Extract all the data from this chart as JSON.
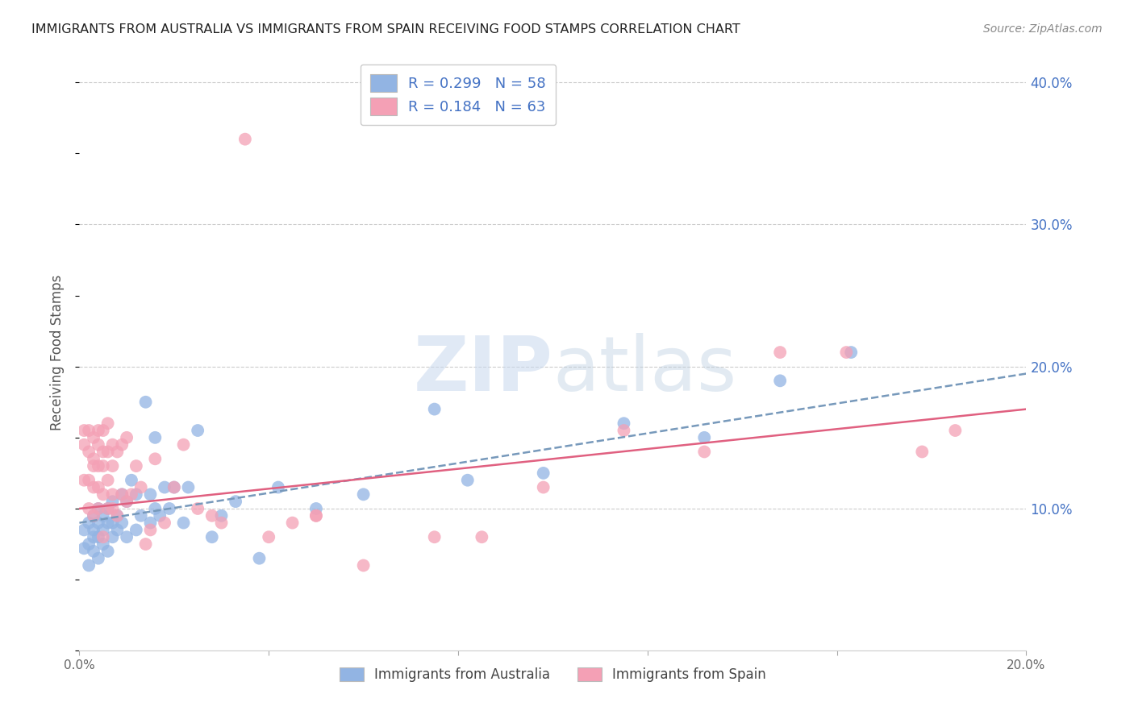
{
  "title": "IMMIGRANTS FROM AUSTRALIA VS IMMIGRANTS FROM SPAIN RECEIVING FOOD STAMPS CORRELATION CHART",
  "source": "Source: ZipAtlas.com",
  "ylabel": "Receiving Food Stamps",
  "xlabel": "",
  "xlim": [
    0.0,
    0.2
  ],
  "ylim": [
    0.0,
    0.42
  ],
  "yticks": [
    0.1,
    0.2,
    0.3,
    0.4
  ],
  "ytick_labels": [
    "10.0%",
    "20.0%",
    "30.0%",
    "40.0%"
  ],
  "xticks": [
    0.0,
    0.04,
    0.08,
    0.12,
    0.16,
    0.2
  ],
  "xtick_labels": [
    "0.0%",
    "",
    "",
    "",
    "",
    "20.0%"
  ],
  "australia_color": "#92b4e3",
  "spain_color": "#f4a0b5",
  "australia_line_color": "#7799bb",
  "spain_line_color": "#e06080",
  "australia_R": 0.299,
  "australia_N": 58,
  "spain_R": 0.184,
  "spain_N": 63,
  "watermark_zip": "ZIP",
  "watermark_atlas": "atlas",
  "axis_label_color": "#4472c4",
  "tick_label_color": "#4472c4",
  "aus_trend_x0": 0.0,
  "aus_trend_y0": 0.09,
  "aus_trend_x1": 0.2,
  "aus_trend_y1": 0.195,
  "esp_trend_x0": 0.0,
  "esp_trend_y0": 0.1,
  "esp_trend_x1": 0.2,
  "esp_trend_y1": 0.17,
  "australia_x": [
    0.001,
    0.001,
    0.002,
    0.002,
    0.002,
    0.003,
    0.003,
    0.003,
    0.003,
    0.004,
    0.004,
    0.004,
    0.004,
    0.005,
    0.005,
    0.005,
    0.006,
    0.006,
    0.006,
    0.007,
    0.007,
    0.007,
    0.008,
    0.008,
    0.009,
    0.009,
    0.01,
    0.01,
    0.011,
    0.012,
    0.012,
    0.013,
    0.014,
    0.015,
    0.015,
    0.016,
    0.016,
    0.017,
    0.018,
    0.019,
    0.02,
    0.022,
    0.023,
    0.025,
    0.028,
    0.03,
    0.033,
    0.038,
    0.042,
    0.05,
    0.06,
    0.075,
    0.082,
    0.098,
    0.115,
    0.132,
    0.148,
    0.163
  ],
  "australia_y": [
    0.085,
    0.072,
    0.09,
    0.075,
    0.06,
    0.08,
    0.095,
    0.07,
    0.085,
    0.065,
    0.08,
    0.1,
    0.09,
    0.075,
    0.085,
    0.095,
    0.07,
    0.09,
    0.1,
    0.08,
    0.09,
    0.105,
    0.085,
    0.095,
    0.09,
    0.11,
    0.08,
    0.105,
    0.12,
    0.085,
    0.11,
    0.095,
    0.175,
    0.09,
    0.11,
    0.1,
    0.15,
    0.095,
    0.115,
    0.1,
    0.115,
    0.09,
    0.115,
    0.155,
    0.08,
    0.095,
    0.105,
    0.065,
    0.115,
    0.1,
    0.11,
    0.17,
    0.12,
    0.125,
    0.16,
    0.15,
    0.19,
    0.21
  ],
  "spain_x": [
    0.001,
    0.001,
    0.001,
    0.002,
    0.002,
    0.002,
    0.002,
    0.003,
    0.003,
    0.003,
    0.003,
    0.003,
    0.004,
    0.004,
    0.004,
    0.004,
    0.004,
    0.005,
    0.005,
    0.005,
    0.005,
    0.005,
    0.006,
    0.006,
    0.006,
    0.006,
    0.007,
    0.007,
    0.007,
    0.007,
    0.008,
    0.008,
    0.009,
    0.009,
    0.01,
    0.01,
    0.011,
    0.012,
    0.013,
    0.014,
    0.015,
    0.016,
    0.018,
    0.02,
    0.022,
    0.025,
    0.028,
    0.03,
    0.035,
    0.04,
    0.045,
    0.05,
    0.06,
    0.05,
    0.075,
    0.085,
    0.098,
    0.115,
    0.132,
    0.148,
    0.162,
    0.178,
    0.185
  ],
  "spain_y": [
    0.145,
    0.12,
    0.155,
    0.1,
    0.14,
    0.12,
    0.155,
    0.095,
    0.135,
    0.115,
    0.15,
    0.13,
    0.1,
    0.145,
    0.115,
    0.155,
    0.13,
    0.08,
    0.13,
    0.11,
    0.14,
    0.155,
    0.1,
    0.14,
    0.12,
    0.16,
    0.1,
    0.13,
    0.11,
    0.145,
    0.095,
    0.14,
    0.11,
    0.145,
    0.105,
    0.15,
    0.11,
    0.13,
    0.115,
    0.075,
    0.085,
    0.135,
    0.09,
    0.115,
    0.145,
    0.1,
    0.095,
    0.09,
    0.36,
    0.08,
    0.09,
    0.095,
    0.06,
    0.095,
    0.08,
    0.08,
    0.115,
    0.155,
    0.14,
    0.21,
    0.21,
    0.14,
    0.155
  ]
}
